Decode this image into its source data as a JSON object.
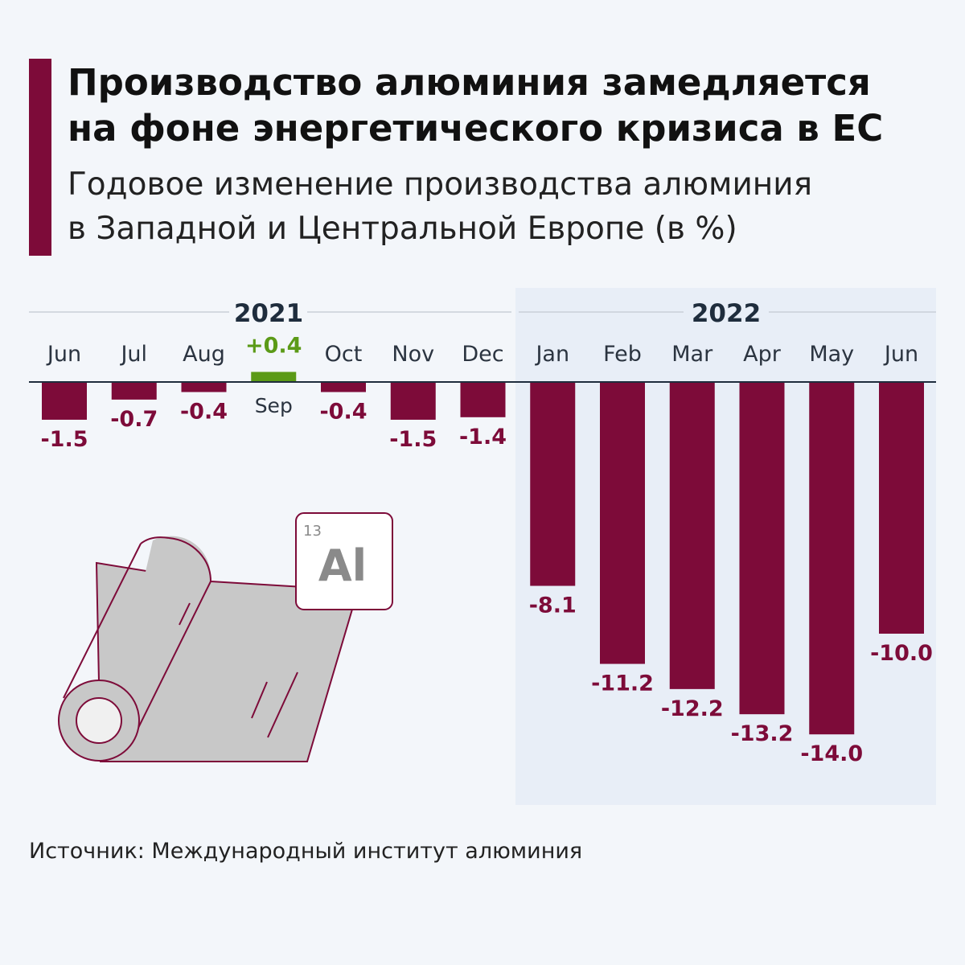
{
  "header": {
    "title_line1": "Производство алюминия замедляется",
    "title_line2": "на фоне энергетического кризиса в ЕС",
    "subtitle_line1": "Годовое изменение производства алюминия",
    "subtitle_line2": "в Западной и Центральной Европе (в %)"
  },
  "chart_data": {
    "type": "bar",
    "title": "Производство алюминия замедляется на фоне энергетического кризиса в ЕС",
    "subtitle": "Годовое изменение производства алюминия в Западной и Центральной Европе (в %)",
    "groups": [
      {
        "label": "2021",
        "categories": [
          "Jun",
          "Jul",
          "Aug",
          "Sep",
          "Oct",
          "Nov",
          "Dec"
        ]
      },
      {
        "label": "2022",
        "categories": [
          "Jan",
          "Feb",
          "Mar",
          "Apr",
          "May",
          "Jun"
        ]
      }
    ],
    "categories": [
      "Jun",
      "Jul",
      "Aug",
      "Sep",
      "Oct",
      "Nov",
      "Dec",
      "Jan",
      "Feb",
      "Mar",
      "Apr",
      "May",
      "Jun"
    ],
    "values": [
      -1.5,
      -0.7,
      -0.4,
      0.4,
      -0.4,
      -1.5,
      -1.4,
      -8.1,
      -11.2,
      -12.2,
      -13.2,
      -14.0,
      -10.0
    ],
    "value_labels": [
      "-1.5",
      "-0.7",
      "-0.4",
      "+0.4",
      "-0.4",
      "-1.5",
      "-1.4",
      "-8.1",
      "-11.2",
      "-12.2",
      "-13.2",
      "-14.0",
      "-10.0"
    ],
    "colors": {
      "negative": "#7d0b39",
      "positive": "#5b9a17",
      "highlight_panel": "#e8eef7"
    },
    "ylim": [
      -14,
      0.4
    ],
    "grid": false,
    "legend": "none"
  },
  "illustration": {
    "element_number": "13",
    "element_symbol": "Al"
  },
  "footer": {
    "source": "Источник: Международный институт алюминия"
  }
}
